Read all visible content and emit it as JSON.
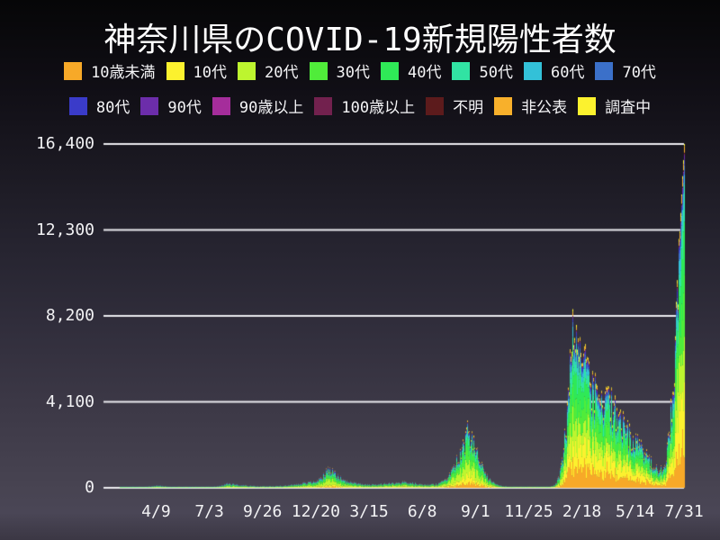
{
  "chart_data": {
    "type": "area",
    "stacked": true,
    "title": "神奈川県のCOVID-19新規陽性者数",
    "xlabel": "",
    "ylabel": "",
    "ylim": [
      0,
      16400
    ],
    "grid": "horizontal",
    "legend_position": "top",
    "background": "dark-gradient",
    "grid_color": "#ececf0",
    "text_color": "#f5f5f7",
    "yticks": {
      "values": [
        0,
        4100,
        8200,
        12300,
        16400
      ],
      "labels": [
        "0",
        "4,100",
        "8,200",
        "12,300",
        "16,400"
      ]
    },
    "x_range_days": [
      0,
      927
    ],
    "xticks": {
      "days": [
        84,
        169,
        254,
        339,
        424,
        509,
        594,
        679,
        764,
        849,
        927
      ],
      "labels": [
        "4/9",
        "7/3",
        "9/26",
        "12/20",
        "3/15",
        "6/8",
        "9/1",
        "11/25",
        "2/18",
        "5/14",
        "7/31"
      ]
    },
    "series": [
      {
        "label": "10歳未満",
        "color": "#F7A928"
      },
      {
        "label": "10代",
        "color": "#FCF12E"
      },
      {
        "label": "20代",
        "color": "#BDF52F"
      },
      {
        "label": "30代",
        "color": "#50EC3A"
      },
      {
        "label": "40代",
        "color": "#2FE957"
      },
      {
        "label": "50代",
        "color": "#31E3A3"
      },
      {
        "label": "60代",
        "color": "#33C1D8"
      },
      {
        "label": "70代",
        "color": "#3B70C9"
      },
      {
        "label": "80代",
        "color": "#3A3BC9"
      },
      {
        "label": "90代",
        "color": "#6C2DAA"
      },
      {
        "label": "90歳以上",
        "color": "#A52D9B"
      },
      {
        "label": "100歳以上",
        "color": "#72214E"
      },
      {
        "label": "不明",
        "color": "#5C1B1C"
      },
      {
        "label": "非公表",
        "color": "#F8B02B"
      },
      {
        "label": "調査中",
        "color": "#FCF22E"
      }
    ],
    "weekly_totals": {
      "interval_days": 7,
      "values": [
        2,
        3,
        4,
        4,
        6,
        10,
        14,
        18,
        22,
        28,
        55,
        85,
        115,
        105,
        75,
        50,
        28,
        16,
        10,
        12,
        16,
        20,
        24,
        30,
        38,
        55,
        85,
        130,
        230,
        215,
        185,
        155,
        125,
        105,
        95,
        85,
        75,
        78,
        82,
        86,
        92,
        105,
        125,
        155,
        200,
        235,
        270,
        315,
        380,
        470,
        620,
        950,
        880,
        690,
        510,
        400,
        310,
        255,
        215,
        185,
        165,
        170,
        180,
        190,
        205,
        225,
        240,
        265,
        300,
        285,
        260,
        235,
        205,
        180,
        165,
        175,
        210,
        290,
        460,
        720,
        1150,
        1700,
        2300,
        2950,
        2650,
        1850,
        1250,
        750,
        430,
        260,
        150,
        90,
        55,
        38,
        28,
        24,
        22,
        20,
        22,
        25,
        28,
        35,
        60,
        180,
        700,
        2200,
        4800,
        9100,
        8200,
        7400,
        6600,
        5900,
        5100,
        4300,
        4500,
        4650,
        4400,
        4000,
        3500,
        3050,
        2800,
        2600,
        2300,
        1950,
        1600,
        1300,
        1080,
        950,
        1250,
        2900,
        6200,
        10500,
        14800
      ],
      "final": {
        "day": 927,
        "value": 16400
      }
    },
    "age_share_keyframes": [
      {
        "day": 0,
        "shares": [
          0.03,
          0.05,
          0.22,
          0.16,
          0.15,
          0.13,
          0.09,
          0.07,
          0.05,
          0.02,
          0.006,
          0.002,
          0.01,
          0.015,
          0.008
        ]
      },
      {
        "day": 560,
        "shares": [
          0.07,
          0.11,
          0.26,
          0.19,
          0.16,
          0.09,
          0.04,
          0.02,
          0.015,
          0.007,
          0.002,
          0.001,
          0.005,
          0.02,
          0.01
        ]
      },
      {
        "day": 760,
        "shares": [
          0.15,
          0.16,
          0.14,
          0.16,
          0.15,
          0.09,
          0.05,
          0.03,
          0.02,
          0.01,
          0.003,
          0.001,
          0.004,
          0.02,
          0.012
        ]
      }
    ]
  }
}
